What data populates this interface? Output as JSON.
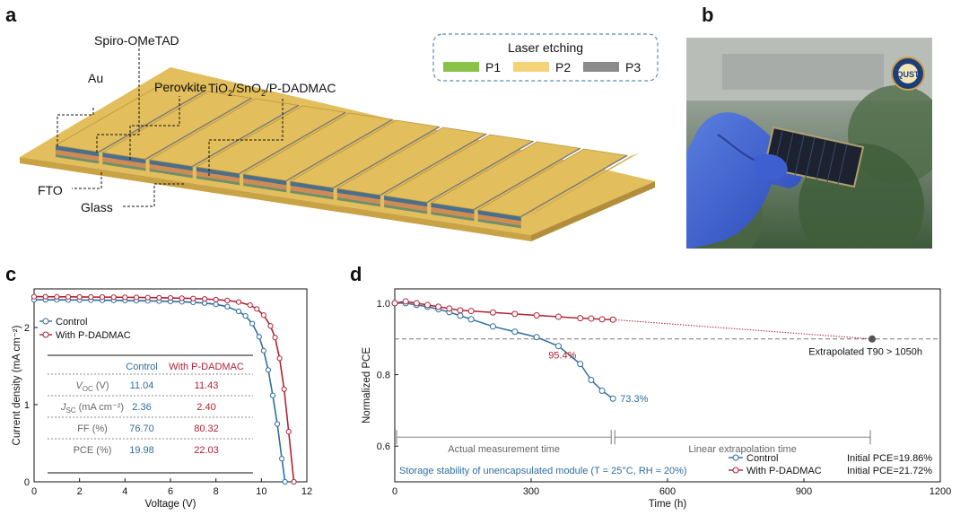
{
  "panels": {
    "a": "a",
    "b": "b",
    "c": "c",
    "d": "d"
  },
  "panel_a": {
    "labels": {
      "spiro": "Spiro-OMeTAD",
      "au": "Au",
      "perovskite": "Perovkite",
      "etl_tio2": "TiO",
      "etl_sub": "2",
      "etl_sno2": "/SnO",
      "etl_sub2": "2",
      "etl_rest": "/P-DADMAC",
      "fto": "FTO",
      "glass": "Glass"
    },
    "legend": {
      "title": "Laser etching",
      "items": [
        {
          "label": "P1",
          "color": "#8BC34A"
        },
        {
          "label": "P2",
          "color": "#F5D27A"
        },
        {
          "label": "P3",
          "color": "#8A8A8A"
        }
      ]
    },
    "colors": {
      "gold": "#E2BE5C",
      "gold_dark": "#C9A246",
      "blue_layer": "#4A6F8C",
      "orange_layer": "#D08A54",
      "dashed_border": "#5A8AB0"
    }
  },
  "panel_b": {
    "logo_text": "QUST"
  },
  "chart_data": [
    {
      "type": "line",
      "panel": "c",
      "xlabel": "Voltage (V)",
      "ylabel": "Current density (mA cm⁻²)",
      "xlim": [
        0,
        12
      ],
      "ylim": [
        0,
        2.5
      ],
      "xticks": [
        "0",
        "2",
        "4",
        "6",
        "8",
        "10",
        "12"
      ],
      "yticks": [
        "0",
        "1",
        "2"
      ],
      "series": [
        {
          "name": "Control",
          "color": "#2E6E9E",
          "x": [
            0,
            0.5,
            1,
            1.5,
            2,
            2.5,
            3,
            3.5,
            4,
            4.5,
            5,
            5.5,
            6,
            6.5,
            7,
            7.5,
            8,
            8.5,
            9,
            9.3,
            9.6,
            9.9,
            10.1,
            10.3,
            10.5,
            10.7,
            10.9,
            11.04
          ],
          "y": [
            2.36,
            2.359,
            2.358,
            2.357,
            2.356,
            2.355,
            2.353,
            2.352,
            2.35,
            2.348,
            2.345,
            2.342,
            2.338,
            2.333,
            2.326,
            2.316,
            2.3,
            2.27,
            2.21,
            2.15,
            2.05,
            1.88,
            1.7,
            1.45,
            1.12,
            0.75,
            0.3,
            0.0
          ]
        },
        {
          "name": "With P-DADMAC",
          "color": "#B22234",
          "x": [
            0,
            0.5,
            1,
            1.5,
            2,
            2.5,
            3,
            3.5,
            4,
            4.5,
            5,
            5.5,
            6,
            6.5,
            7,
            7.5,
            8,
            8.5,
            9,
            9.5,
            9.8,
            10.1,
            10.4,
            10.6,
            10.8,
            11.0,
            11.2,
            11.43
          ],
          "y": [
            2.4,
            2.399,
            2.398,
            2.397,
            2.396,
            2.395,
            2.394,
            2.393,
            2.391,
            2.39,
            2.388,
            2.386,
            2.383,
            2.38,
            2.376,
            2.37,
            2.362,
            2.35,
            2.33,
            2.29,
            2.24,
            2.16,
            2.02,
            1.87,
            1.6,
            1.2,
            0.65,
            0.0
          ]
        }
      ],
      "legend": {
        "placement": "top-left",
        "entries": [
          "Control",
          "With P-DADMAC"
        ]
      },
      "table": {
        "header": [
          "",
          "Control",
          "With P-DADMAC"
        ],
        "rows": [
          {
            "param": "V",
            "sub": "OC",
            "unit": " (V)",
            "control": "11.04",
            "pdadmac": "11.43"
          },
          {
            "param": "J",
            "sub": "SC",
            "unit": " (mA cm⁻²)",
            "control": "2.36",
            "pdadmac": "2.40"
          },
          {
            "param": "FF",
            "sub": "",
            "unit": " (%)",
            "control": "76.70",
            "pdadmac": "80.32"
          },
          {
            "param": "PCE",
            "sub": "",
            "unit": " (%)",
            "control": "19.98",
            "pdadmac": "22.03"
          }
        ]
      }
    },
    {
      "type": "line",
      "panel": "d",
      "xlabel": "Time (h)",
      "ylabel": "Normalized PCE",
      "xlim": [
        0,
        1200
      ],
      "ylim": [
        0.5,
        1.04
      ],
      "xticks": [
        "0",
        "300",
        "600",
        "900",
        "1200"
      ],
      "yticks": [
        "0.6",
        "0.8",
        "1.0"
      ],
      "series": [
        {
          "name": "Control",
          "color": "#2E6E9E",
          "x": [
            0,
            24,
            48,
            72,
            96,
            120,
            144,
            168,
            216,
            264,
            312,
            360,
            408,
            432,
            456,
            480
          ],
          "y": [
            1.0,
            1.0,
            0.995,
            0.99,
            0.983,
            0.975,
            0.965,
            0.955,
            0.935,
            0.92,
            0.905,
            0.88,
            0.83,
            0.785,
            0.755,
            0.733
          ]
        },
        {
          "name": "With P-DADMAC",
          "color": "#B22234",
          "x": [
            0,
            24,
            48,
            72,
            96,
            120,
            144,
            168,
            216,
            264,
            312,
            360,
            408,
            432,
            456,
            480
          ],
          "y": [
            1.0,
            1.005,
            1.0,
            0.995,
            0.99,
            0.985,
            0.98,
            0.978,
            0.974,
            0.97,
            0.966,
            0.962,
            0.958,
            0.957,
            0.955,
            0.954
          ]
        }
      ],
      "extrapolation": {
        "x": [
          480,
          1050
        ],
        "y": [
          0.954,
          0.9
        ],
        "marker_x": 1050,
        "marker_y": 0.9
      },
      "t90_line": 0.9,
      "annotations": {
        "red_value": "95.4%",
        "blue_value": "73.3%",
        "extrapolated": "Extrapolated T90  > 1050h",
        "actual_time": "Actual measurement time",
        "linear_time": "Linear extrapolation time",
        "storage": "Storage stability of unencapsulated module (T = 25°C, RH ≈ 20%)"
      },
      "legend": {
        "placement": "bottom-right",
        "entries": [
          {
            "name": "Control",
            "initial": "Initial PCE=19.86%"
          },
          {
            "name": "With P-DADMAC",
            "initial": "Initial PCE=21.72%"
          }
        ]
      }
    }
  ]
}
